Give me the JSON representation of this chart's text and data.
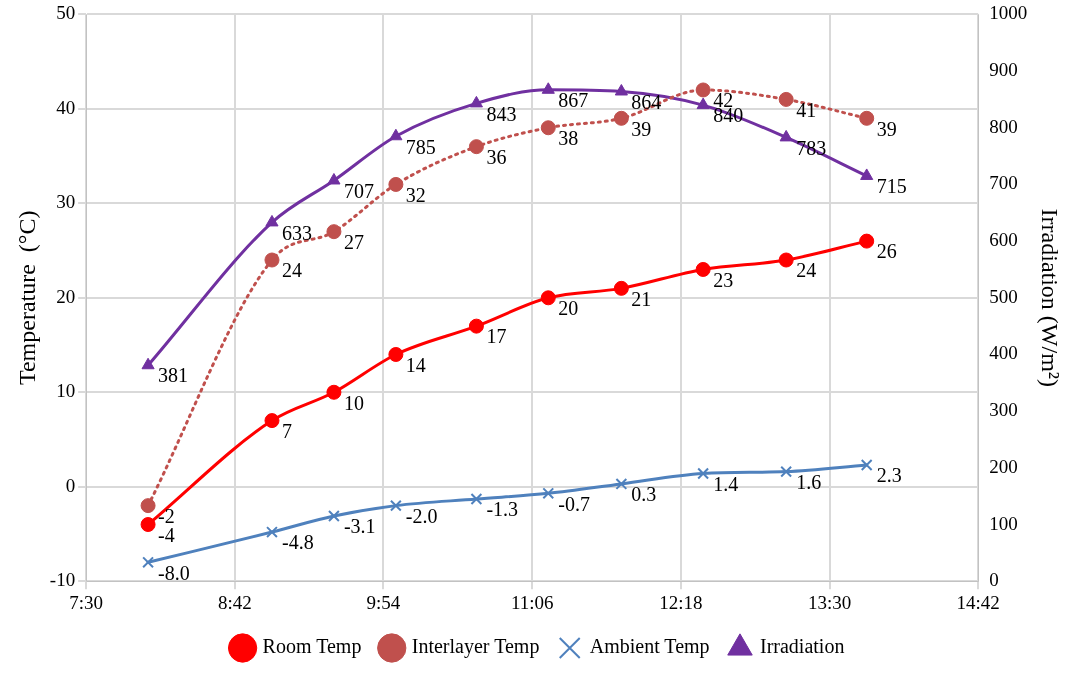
{
  "chart_data": {
    "type": "line",
    "xlabel": null,
    "ylabel": "Temperature  (°C)",
    "y2label": "Irradiation (W/m²)",
    "x": [
      8,
      9,
      9.5,
      10,
      10.65,
      11.23,
      11.82,
      12.48,
      13.15,
      13.8
    ],
    "xlim": [
      7.5,
      14.7
    ],
    "xticks": [
      {
        "value": 7.5,
        "label": "7:30"
      },
      {
        "value": 8.7,
        "label": "8:42"
      },
      {
        "value": 9.9,
        "label": "9:54"
      },
      {
        "value": 11.1,
        "label": "11:06"
      },
      {
        "value": 12.3,
        "label": "12:18"
      },
      {
        "value": 13.5,
        "label": "13:30"
      },
      {
        "value": 14.7,
        "label": "14:42"
      }
    ],
    "ylim": [
      -10,
      50
    ],
    "yticks": [
      -10,
      0,
      10,
      20,
      30,
      40,
      50
    ],
    "y2lim": [
      0,
      1000
    ],
    "y2ticks": [
      0,
      100,
      200,
      300,
      400,
      500,
      600,
      700,
      800,
      900,
      1000
    ],
    "grid": true,
    "legend": "bottom",
    "series": [
      {
        "name": "Room Temp",
        "color": "#ff0000",
        "marker": "circle",
        "line_style": "solid",
        "values": [
          -4,
          7,
          10,
          14,
          17,
          20,
          21,
          23,
          24,
          26
        ],
        "value_labels": [
          "-4",
          "7",
          "10",
          "14",
          "17",
          "20",
          "21",
          "23",
          "24",
          "26"
        ]
      },
      {
        "name": "Interlayer Temp",
        "color": "#c0504d",
        "marker": "circle",
        "line_style": "dotted",
        "values": [
          -2,
          24,
          27,
          32,
          36,
          38,
          39,
          42,
          41,
          39
        ],
        "value_labels": [
          "-2",
          "24",
          "27",
          "32",
          "36",
          "38",
          "39",
          "42",
          "41",
          "39"
        ]
      },
      {
        "name": "Ambient Temp",
        "color": "#4f81bd",
        "marker": "cross",
        "line_style": "solid",
        "values": [
          -8.0,
          -4.8,
          -3.1,
          -2.0,
          -1.3,
          -0.7,
          0.3,
          1.4,
          1.6,
          2.3
        ],
        "value_labels": [
          "-8.0",
          "-4.8",
          "-3.1",
          "-2.0",
          "-1.3",
          "-0.7",
          "0.3",
          "1.4",
          "1.6",
          "2.3"
        ]
      },
      {
        "name": "Irradiation",
        "color": "#7030a0",
        "marker": "triangle",
        "line_style": "solid",
        "axis": "y2",
        "values": [
          381,
          633,
          707,
          785,
          843,
          867,
          864,
          840,
          783,
          715
        ],
        "value_labels": [
          "381",
          "633",
          "707",
          "785",
          "843",
          "867",
          "864",
          "840",
          "783",
          "715"
        ]
      }
    ]
  }
}
